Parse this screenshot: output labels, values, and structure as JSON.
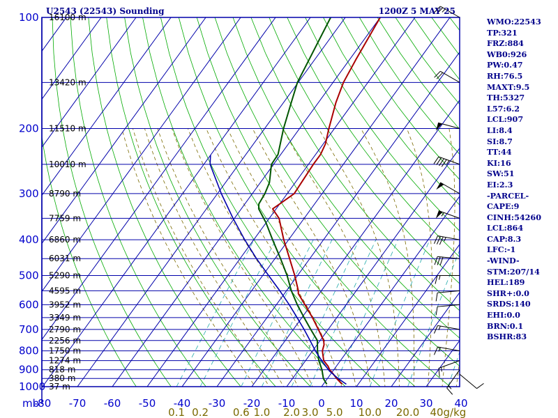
{
  "header": {
    "station": "U2543 (22543) Sounding",
    "time": "1200Z  5 MAY 25"
  },
  "colors": {
    "isobar": "#0000aa",
    "isotherm": "#0000aa",
    "dry_adiabat": "#00aa00",
    "moist_adiabat": "#7a6a00",
    "mixing_ratio": "#22aaaa",
    "temperature": "#aa0000",
    "dewpoint": "#005500",
    "parcel": "#0000aa",
    "wind": "#000000"
  },
  "indices": [
    "WMO:22543",
    "TP:321",
    "FRZ:884",
    "WB0:926",
    "PW:0.47",
    "RH:76.5",
    "MAXT:9.5",
    "TH:5327",
    "L57:6.2",
    "LCL:907",
    "LI:8.4",
    "SI:8.7",
    "TT:44",
    "KI:16",
    "SW:51",
    "EI:2.3",
    "-PARCEL-",
    "CAPE:9",
    "CINH:54260",
    "LCL:864",
    "CAP:8.3",
    "LFC:-1",
    "-WIND-",
    "STM:207/14",
    "HEL:189",
    "SHR+:0.0",
    "SRDS:140",
    "EHI:0.0",
    "BRN:0.1",
    "BSHR:83"
  ],
  "chart_data": {
    "type": "line",
    "title": "U2543 (22543) Sounding",
    "x_axis": {
      "label": "mb",
      "ticks": [
        -80,
        -70,
        -60,
        -50,
        -40,
        -30,
        -20,
        -10,
        0,
        10,
        20,
        30,
        40
      ],
      "tick_labels": [
        "-80",
        "-70",
        "-60",
        "-50",
        "-40",
        "-30",
        "-20",
        "-10",
        "0",
        "10",
        "20",
        "30",
        "40"
      ]
    },
    "y_axis": {
      "scale": "log-pressure",
      "ticks": [
        100,
        200,
        300,
        400,
        500,
        600,
        700,
        800,
        900,
        1000
      ],
      "tick_labels": [
        "100",
        "200",
        "300",
        "400",
        "500",
        "600",
        "700",
        "800",
        "900",
        "1000"
      ]
    },
    "mixing_ratio_labels": [
      {
        "value": 0.1,
        "label": "0.1"
      },
      {
        "value": 0.2,
        "label": "0.2"
      },
      {
        "value": 0.6,
        "label": "0.6"
      },
      {
        "value": 1.0,
        "label": "1.0"
      },
      {
        "value": 2.0,
        "label": "2.0"
      },
      {
        "value": 3.0,
        "label": "3.0"
      },
      {
        "value": 5.0,
        "label": "5.0"
      },
      {
        "value": 10.0,
        "label": "10.0"
      },
      {
        "value": 20.0,
        "label": "20.0"
      },
      {
        "value": 40.0,
        "label": "40g/kg"
      }
    ],
    "height_labels": [
      {
        "p": 100,
        "label": "16100 m"
      },
      {
        "p": 150,
        "label": "13420 m"
      },
      {
        "p": 200,
        "label": "11510 m"
      },
      {
        "p": 250,
        "label": "10010 m"
      },
      {
        "p": 300,
        "label": "8790 m"
      },
      {
        "p": 350,
        "label": "7759 m"
      },
      {
        "p": 400,
        "label": "6860 m"
      },
      {
        "p": 450,
        "label": "6031 m"
      },
      {
        "p": 500,
        "label": "5290 m"
      },
      {
        "p": 550,
        "label": "4595 m"
      },
      {
        "p": 600,
        "label": "3952 m"
      },
      {
        "p": 650,
        "label": "3349 m"
      },
      {
        "p": 700,
        "label": "2790 m"
      },
      {
        "p": 750,
        "label": "2256 m"
      },
      {
        "p": 800,
        "label": "1750 m"
      },
      {
        "p": 850,
        "label": "1274 m"
      },
      {
        "p": 900,
        "label": "818 m"
      },
      {
        "p": 950,
        "label": "380 m"
      },
      {
        "p": 1000,
        "label": "37 m"
      }
    ],
    "series": [
      {
        "name": "temperature",
        "points": [
          [
            985,
            5.4
          ],
          [
            950,
            2.6
          ],
          [
            925,
            0.8
          ],
          [
            900,
            -1.2
          ],
          [
            880,
            -2.4
          ],
          [
            850,
            -4.8
          ],
          [
            800,
            -7.2
          ],
          [
            770,
            -8.0
          ],
          [
            750,
            -9.0
          ],
          [
            700,
            -12.8
          ],
          [
            650,
            -17.0
          ],
          [
            600,
            -21.8
          ],
          [
            560,
            -26.0
          ],
          [
            550,
            -26.6
          ],
          [
            500,
            -30.8
          ],
          [
            450,
            -35.8
          ],
          [
            400,
            -41.4
          ],
          [
            350,
            -47.2
          ],
          [
            330,
            -51.0
          ],
          [
            320,
            -50.0
          ],
          [
            300,
            -48.0
          ],
          [
            250,
            -48.6
          ],
          [
            235,
            -48.6
          ],
          [
            220,
            -49.4
          ],
          [
            200,
            -51.6
          ],
          [
            170,
            -55.0
          ],
          [
            150,
            -57.0
          ],
          [
            130,
            -58.2
          ],
          [
            100,
            -60.0
          ]
        ]
      },
      {
        "name": "dewpoint",
        "points": [
          [
            985,
            1.0
          ],
          [
            950,
            -1.2
          ],
          [
            900,
            -3.4
          ],
          [
            850,
            -6.2
          ],
          [
            800,
            -8.6
          ],
          [
            750,
            -10.8
          ],
          [
            700,
            -15.0
          ],
          [
            650,
            -19.4
          ],
          [
            600,
            -24.0
          ],
          [
            550,
            -28.6
          ],
          [
            500,
            -33.0
          ],
          [
            450,
            -38.4
          ],
          [
            400,
            -44.6
          ],
          [
            360,
            -50.0
          ],
          [
            330,
            -55.0
          ],
          [
            320,
            -56.0
          ],
          [
            300,
            -56.4
          ],
          [
            280,
            -57.4
          ],
          [
            250,
            -60.6
          ],
          [
            235,
            -60.8
          ],
          [
            200,
            -64.6
          ],
          [
            170,
            -67.8
          ],
          [
            150,
            -70.2
          ],
          [
            100,
            -74.2
          ]
        ]
      },
      {
        "name": "parcel",
        "points": [
          [
            985,
            6.6
          ],
          [
            950,
            3.0
          ],
          [
            907,
            -1.0
          ],
          [
            850,
            -5.4
          ],
          [
            800,
            -9.2
          ],
          [
            750,
            -12.9
          ],
          [
            700,
            -16.9
          ],
          [
            650,
            -21.4
          ],
          [
            600,
            -26.3
          ],
          [
            550,
            -31.9
          ],
          [
            500,
            -38.3
          ],
          [
            450,
            -45.3
          ],
          [
            400,
            -52.6
          ],
          [
            350,
            -60.4
          ],
          [
            300,
            -68.9
          ],
          [
            250,
            -78.2
          ],
          [
            236,
            -80.0
          ]
        ]
      }
    ],
    "winds": [
      {
        "p": 100,
        "dir": 300,
        "spd": 25
      },
      {
        "p": 150,
        "dir": 300,
        "spd": 20
      },
      {
        "p": 200,
        "dir": 285,
        "spd": 50
      },
      {
        "p": 250,
        "dir": 290,
        "spd": 45
      },
      {
        "p": 300,
        "dir": 300,
        "spd": 50
      },
      {
        "p": 350,
        "dir": 290,
        "spd": 55
      },
      {
        "p": 400,
        "dir": 280,
        "spd": 35
      },
      {
        "p": 450,
        "dir": 275,
        "spd": 30
      },
      {
        "p": 500,
        "dir": 270,
        "spd": 15
      },
      {
        "p": 550,
        "dir": 265,
        "spd": 10
      },
      {
        "p": 600,
        "dir": 265,
        "spd": 10
      },
      {
        "p": 700,
        "dir": 280,
        "spd": 15
      },
      {
        "p": 800,
        "dir": 280,
        "spd": 15
      },
      {
        "p": 850,
        "dir": 250,
        "spd": 15
      },
      {
        "p": 900,
        "dir": 215,
        "spd": 15
      },
      {
        "p": 925,
        "dir": 130,
        "spd": 10
      }
    ]
  }
}
